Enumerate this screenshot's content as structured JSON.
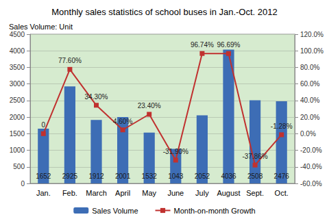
{
  "chart_data": {
    "type": "bar",
    "title": "Monthly sales statistics of school buses in Jan.-Oct. 2012",
    "ylabel": "Sales Volume: Unit",
    "categories": [
      "Jan.",
      "Feb.",
      "March",
      "April",
      "May",
      "June",
      "July",
      "August",
      "Sept.",
      "Oct."
    ],
    "series": [
      {
        "name": "Sales Volume",
        "type": "bar",
        "color": "#3d6db5",
        "values": [
          1652,
          2925,
          1912,
          2001,
          1532,
          1043,
          2052,
          4036,
          2508,
          2476
        ],
        "data_labels": true
      },
      {
        "name": "Month-on-month Growth",
        "type": "line",
        "axis": "y2",
        "color": "#c0312f",
        "marker": "square",
        "values": [
          0,
          77.6,
          34.3,
          4.6,
          23.4,
          -31.9,
          96.74,
          96.69,
          -37.86,
          -1.28
        ],
        "value_labels": [
          "0",
          "77.60%",
          "34.30%",
          "4.60%",
          "23.40%",
          "-31.90%",
          "96.74%",
          "96.69%",
          "-37.86%",
          "-1.28%"
        ],
        "data_labels": true
      }
    ],
    "ylim": [
      0,
      4500
    ],
    "yticks": [
      0,
      500,
      1000,
      1500,
      2000,
      2500,
      3000,
      3500,
      4000,
      4500
    ],
    "y2lim": [
      -60,
      120
    ],
    "y2ticks": [
      {
        "value": -60,
        "label": "-60.0%"
      },
      {
        "value": -40,
        "label": "-40.0%"
      },
      {
        "value": -20,
        "label": "-20.0%"
      },
      {
        "value": 0,
        "label": "0.0%"
      },
      {
        "value": 20,
        "label": "20.0%"
      },
      {
        "value": 40,
        "label": "40.0%"
      },
      {
        "value": 60,
        "label": "60.0%"
      },
      {
        "value": 80,
        "label": "80.0%"
      },
      {
        "value": 100,
        "label": "100.0%"
      },
      {
        "value": 120,
        "label": "120.0%"
      }
    ],
    "grid": true,
    "legend": "bottom"
  }
}
